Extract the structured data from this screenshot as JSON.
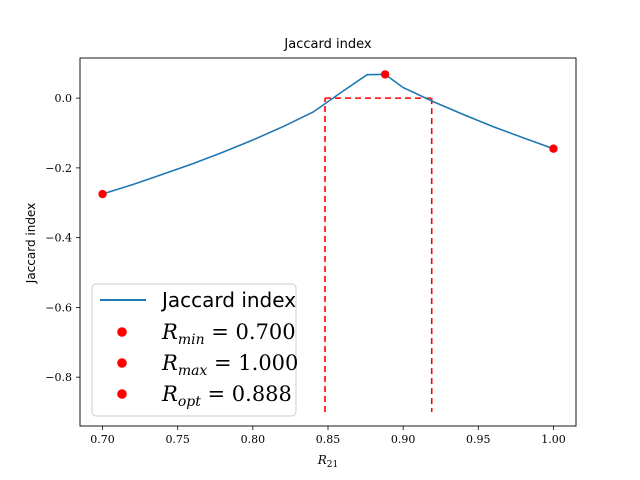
{
  "chart_data": {
    "type": "line",
    "title": "Jaccard index",
    "xlabel": "R_21",
    "ylabel": "Jaccard index",
    "xlim": [
      0.685,
      1.015
    ],
    "ylim": [
      -0.94,
      0.115
    ],
    "grid": false,
    "legend_position": "lower-left",
    "x_ticks": [
      {
        "value": 0.7,
        "label": "0.70"
      },
      {
        "value": 0.75,
        "label": "0.75"
      },
      {
        "value": 0.8,
        "label": "0.80"
      },
      {
        "value": 0.85,
        "label": "0.85"
      },
      {
        "value": 0.9,
        "label": "0.90"
      },
      {
        "value": 0.95,
        "label": "0.95"
      },
      {
        "value": 1.0,
        "label": "1.00"
      }
    ],
    "y_ticks": [
      {
        "value": 0.0,
        "label": "0.0"
      },
      {
        "value": -0.2,
        "label": "−0.2"
      },
      {
        "value": -0.4,
        "label": "−0.4"
      },
      {
        "value": -0.6,
        "label": "−0.6"
      },
      {
        "value": -0.8,
        "label": "−0.8"
      }
    ],
    "series": [
      {
        "name": "Jaccard index",
        "color": "#1f77b4",
        "x": [
          0.7,
          0.72,
          0.74,
          0.76,
          0.78,
          0.8,
          0.82,
          0.84,
          0.86,
          0.876,
          0.888,
          0.9,
          0.92,
          0.94,
          0.96,
          0.98,
          1.0
        ],
        "y": [
          -0.275,
          -0.248,
          -0.218,
          -0.188,
          -0.155,
          -0.12,
          -0.082,
          -0.04,
          0.02,
          0.067,
          0.068,
          0.03,
          -0.01,
          -0.047,
          -0.082,
          -0.114,
          -0.145
        ]
      }
    ],
    "points": [
      {
        "name": "R_min = 0.700",
        "x": 0.7,
        "y": -0.275,
        "color": "#ff0000"
      },
      {
        "name": "R_max = 1.000",
        "x": 1.0,
        "y": -0.145,
        "color": "#ff0000"
      },
      {
        "name": "R_opt = 0.888",
        "x": 0.888,
        "y": 0.068,
        "color": "#ff0000"
      }
    ],
    "dashed_lines": {
      "color": "#ff0000",
      "left_x": 0.848,
      "right_x": 0.919,
      "top_y": 0.0,
      "bottom_y": -0.9
    },
    "legend": [
      {
        "kind": "line",
        "text": "Jaccard index",
        "color": "#1f77b4"
      },
      {
        "kind": "marker",
        "var": "R",
        "sub": "min",
        "value": " = 0.700",
        "color": "#ff0000"
      },
      {
        "kind": "marker",
        "var": "R",
        "sub": "max",
        "value": " = 1.000",
        "color": "#ff0000"
      },
      {
        "kind": "marker",
        "var": "R",
        "sub": "opt",
        "value": " = 0.888",
        "color": "#ff0000"
      }
    ]
  }
}
